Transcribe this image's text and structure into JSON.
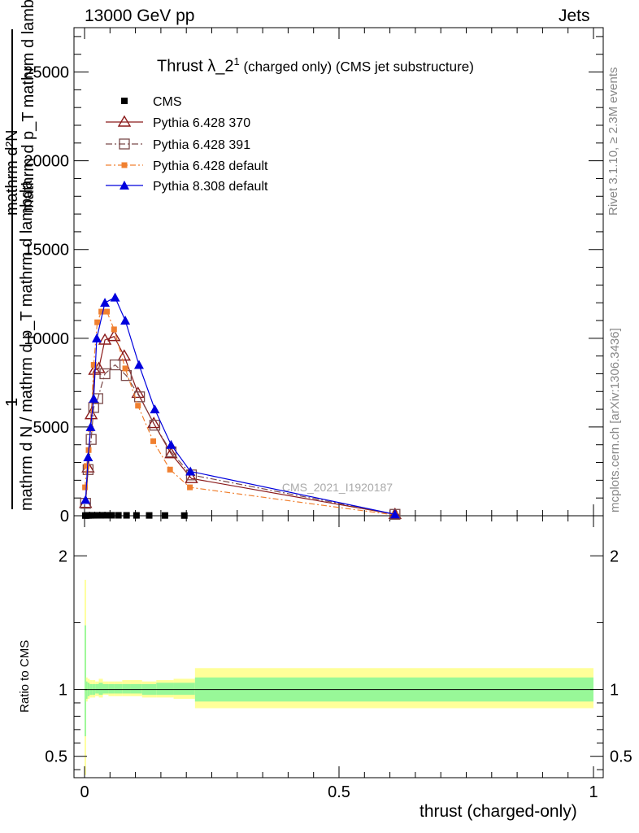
{
  "header": {
    "left": "13000 GeV pp",
    "right": "Jets"
  },
  "side_labels": {
    "rivet": "Rivet 3.1.10, ≥ 2.3M events",
    "mcplots": "mcplots.cern.ch [arXiv:1306.3436]"
  },
  "watermark": "CMS_2021_I1920187",
  "colors": {
    "cms": "#000000",
    "p370": "#8b1a1a",
    "p391": "#7a4a4a",
    "pdefault": "#f08030",
    "p8": "#0000dd",
    "band_inner": "#98f898",
    "band_outer": "#ffff99"
  },
  "chart_data": [
    {
      "type": "line",
      "title": "Thrust λ_2¹ (charged only) (CMS jet substructure)",
      "title_main": "Thrust λ_2",
      "title_sup": "1",
      "title_rest": " (charged only) (CMS jet substructure)",
      "ylabel_lines": [
        "1",
        "mathrm d N / mathrm d p_T mathrm d lambda",
        "mathrm d²N",
        "mathrm d p_T mathrm d lambda"
      ],
      "xlim": [
        0,
        1
      ],
      "ylim": [
        0,
        27500
      ],
      "yticks": [
        0,
        5000,
        10000,
        15000,
        20000,
        25000
      ],
      "ytick_labels": [
        "0",
        "5000",
        "10000",
        "15000",
        "20000",
        "25000"
      ],
      "legend_position": "top-left",
      "series": [
        {
          "name": "CMS",
          "marker": "square",
          "x": [
            0.0015,
            0.0045,
            0.008,
            0.0125,
            0.018,
            0.0245,
            0.032,
            0.0415,
            0.053,
            0.0665,
            0.0825,
            0.102,
            0.127,
            0.158,
            0.196
          ],
          "y": [
            10,
            15,
            18,
            20,
            22,
            23,
            24,
            25,
            25,
            24,
            22,
            20,
            18,
            15,
            12
          ]
        },
        {
          "name": "Pythia 6.428 370",
          "marker": "triangle-open",
          "dash": "",
          "x": [
            0.002,
            0.007,
            0.013,
            0.02,
            0.028,
            0.04,
            0.058,
            0.078,
            0.105,
            0.136,
            0.17,
            0.21,
            0.61
          ],
          "y": [
            700,
            2700,
            5700,
            8200,
            8300,
            9900,
            10100,
            9000,
            6900,
            5200,
            3500,
            2100,
            80
          ]
        },
        {
          "name": "Pythia 6.428 391",
          "marker": "square-open",
          "dash": "8,3,2,3",
          "x": [
            0.002,
            0.007,
            0.013,
            0.018,
            0.026,
            0.04,
            0.06,
            0.082,
            0.108,
            0.138,
            0.17,
            0.21,
            0.61
          ],
          "y": [
            700,
            2600,
            4300,
            6100,
            6600,
            8000,
            8500,
            7900,
            6700,
            5100,
            3600,
            2300,
            80
          ]
        },
        {
          "name": "Pythia 6.428 default",
          "marker": "square-filled",
          "dash": "7,3,2,3",
          "x": [
            0.001,
            0.004,
            0.008,
            0.012,
            0.018,
            0.025,
            0.033,
            0.044,
            0.058,
            0.08,
            0.105,
            0.135,
            0.168,
            0.207,
            0.61
          ],
          "y": [
            1600,
            2800,
            3700,
            4900,
            8500,
            10900,
            11500,
            11500,
            10500,
            8300,
            6200,
            4200,
            2600,
            1600,
            40
          ]
        },
        {
          "name": "Pythia 8.308 default",
          "marker": "triangle-filled",
          "dash": "",
          "x": [
            0.002,
            0.007,
            0.012,
            0.018,
            0.024,
            0.04,
            0.06,
            0.08,
            0.107,
            0.138,
            0.17,
            0.208,
            0.61
          ],
          "y": [
            900,
            3300,
            5000,
            6600,
            10000,
            12000,
            12300,
            11000,
            8500,
            6000,
            4000,
            2500,
            80
          ]
        }
      ]
    },
    {
      "type": "area",
      "ylabel": "Ratio to CMS",
      "xlabel": "thrust (charged-only)",
      "xlim": [
        0,
        1
      ],
      "ylim": [
        0.34,
        2.3
      ],
      "xticks": [
        0,
        0.5,
        1
      ],
      "xtick_labels": [
        "0",
        "0.5",
        "1"
      ],
      "yticks": [
        0.5,
        1,
        2
      ],
      "ytick_labels": [
        "0.5",
        "1",
        "2"
      ],
      "edges": [
        0.0,
        0.003,
        0.006,
        0.01,
        0.015,
        0.021,
        0.028,
        0.036,
        0.047,
        0.059,
        0.074,
        0.091,
        0.113,
        0.141,
        0.175,
        0.217,
        1.0
      ],
      "inner_lo": [
        0.65,
        0.93,
        0.95,
        0.96,
        0.96,
        0.97,
        0.96,
        0.97,
        0.97,
        0.97,
        0.97,
        0.97,
        0.96,
        0.96,
        0.96,
        0.91
      ],
      "inner_hi": [
        1.48,
        1.06,
        1.05,
        1.04,
        1.04,
        1.04,
        1.05,
        1.04,
        1.04,
        1.04,
        1.04,
        1.04,
        1.04,
        1.05,
        1.05,
        1.09
      ],
      "outer_lo": [
        0.36,
        0.91,
        0.93,
        0.94,
        0.94,
        0.95,
        0.94,
        0.96,
        0.95,
        0.95,
        0.95,
        0.95,
        0.94,
        0.94,
        0.93,
        0.86
      ],
      "outer_hi": [
        1.82,
        1.09,
        1.08,
        1.07,
        1.07,
        1.06,
        1.08,
        1.06,
        1.06,
        1.06,
        1.07,
        1.07,
        1.06,
        1.07,
        1.08,
        1.16
      ]
    }
  ]
}
